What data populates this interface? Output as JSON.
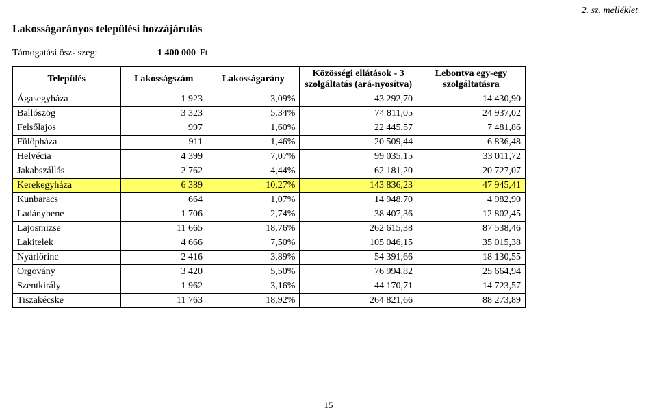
{
  "annex_label": "2. sz. melléklet",
  "title": "Lakosságarányos települési hozzájárulás",
  "support": {
    "label": "Támogatási ösz-\nszeg:",
    "amount": "1 400 000",
    "unit": "Ft"
  },
  "table": {
    "columns": [
      "Település",
      "Lakosságszám",
      "Lakosságarány",
      "Közösségi ellátások - 3 szolgáltatás (ará-nyosítva)",
      "Lebontva egy-egy szolgáltatásra"
    ],
    "rows": [
      {
        "name": "Ágasegyháza",
        "pop": "1 923",
        "ratio": "3,09%",
        "comm": "43 292,70",
        "break": "14 430,90",
        "hl": false
      },
      {
        "name": "Ballószög",
        "pop": "3 323",
        "ratio": "5,34%",
        "comm": "74 811,05",
        "break": "24 937,02",
        "hl": false
      },
      {
        "name": "Felsőlajos",
        "pop": "997",
        "ratio": "1,60%",
        "comm": "22 445,57",
        "break": "7 481,86",
        "hl": false
      },
      {
        "name": "Fülöpháza",
        "pop": "911",
        "ratio": "1,46%",
        "comm": "20 509,44",
        "break": "6 836,48",
        "hl": false
      },
      {
        "name": "Helvécia",
        "pop": "4 399",
        "ratio": "7,07%",
        "comm": "99 035,15",
        "break": "33 011,72",
        "hl": false
      },
      {
        "name": "Jakabszállás",
        "pop": "2 762",
        "ratio": "4,44%",
        "comm": "62 181,20",
        "break": "20 727,07",
        "hl": false
      },
      {
        "name": "Kerekegyháza",
        "pop": "6 389",
        "ratio": "10,27%",
        "comm": "143 836,23",
        "break": "47 945,41",
        "hl": true
      },
      {
        "name": "Kunbaracs",
        "pop": "664",
        "ratio": "1,07%",
        "comm": "14 948,70",
        "break": "4 982,90",
        "hl": false
      },
      {
        "name": "Ladánybene",
        "pop": "1 706",
        "ratio": "2,74%",
        "comm": "38 407,36",
        "break": "12 802,45",
        "hl": false
      },
      {
        "name": "Lajosmizse",
        "pop": "11 665",
        "ratio": "18,76%",
        "comm": "262 615,38",
        "break": "87 538,46",
        "hl": false
      },
      {
        "name": "Lakitelek",
        "pop": "4 666",
        "ratio": "7,50%",
        "comm": "105 046,15",
        "break": "35 015,38",
        "hl": false
      },
      {
        "name": "Nyárlőrinc",
        "pop": "2 416",
        "ratio": "3,89%",
        "comm": "54 391,66",
        "break": "18 130,55",
        "hl": false
      },
      {
        "name": "Orgovány",
        "pop": "3 420",
        "ratio": "5,50%",
        "comm": "76 994,82",
        "break": "25 664,94",
        "hl": false
      },
      {
        "name": "Szentkirály",
        "pop": "1 962",
        "ratio": "3,16%",
        "comm": "44 170,71",
        "break": "14 723,57",
        "hl": false
      },
      {
        "name": "Tiszakécske",
        "pop": "11 763",
        "ratio": "18,92%",
        "comm": "264 821,66",
        "break": "88 273,89",
        "hl": false
      }
    ]
  },
  "page_number": "15",
  "style": {
    "highlight_color": "#ffff66",
    "border_color": "#000000",
    "background": "#ffffff",
    "font_family": "Times New Roman",
    "base_fontsize_pt": 11
  }
}
